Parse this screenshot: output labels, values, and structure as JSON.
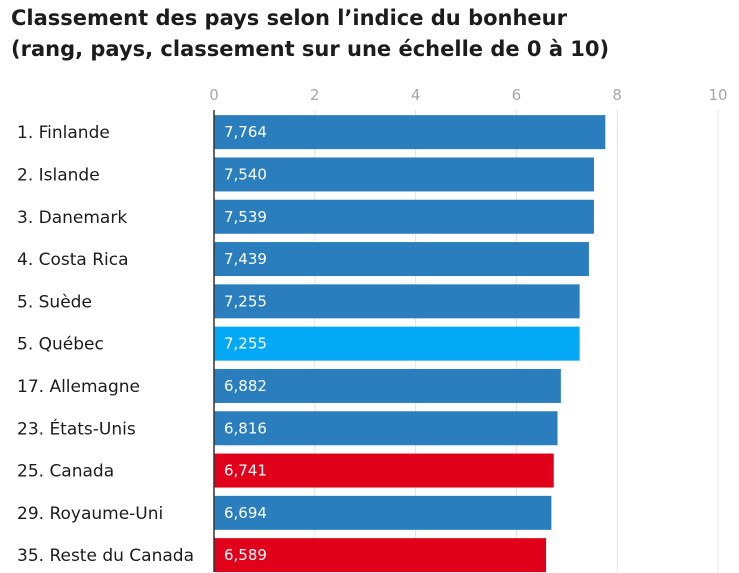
{
  "chart_data": {
    "type": "bar",
    "orientation": "horizontal",
    "title_lines": [
      "Classement des pays selon l’indice du bonheur",
      "(rang, pays, classement sur une échelle de 0 à 10)"
    ],
    "xlim": [
      0,
      10
    ],
    "xticks": [
      0,
      2,
      4,
      6,
      8,
      10
    ],
    "grid": true,
    "categories": [
      "1. Finlande",
      "2. Islande",
      "3. Danemark",
      "4. Costa Rica",
      "5. Suède",
      "5. Québec",
      "17. Allemagne",
      "23. États-Unis",
      "25. Canada",
      "29. Royaume-Uni",
      "35. Reste du Canada"
    ],
    "values": [
      7.764,
      7.54,
      7.539,
      7.439,
      7.255,
      7.255,
      6.882,
      6.816,
      6.741,
      6.694,
      6.589
    ],
    "value_labels": [
      "7,764",
      "7,540",
      "7,539",
      "7,439",
      "7,255",
      "7,255",
      "6,882",
      "6,816",
      "6,741",
      "6,694",
      "6,589"
    ],
    "bar_colors": [
      "#2a7ebd",
      "#2a7ebd",
      "#2a7ebd",
      "#2a7ebd",
      "#2a7ebd",
      "#03a9f4",
      "#2a7ebd",
      "#2a7ebd",
      "#e1001a",
      "#2a7ebd",
      "#e1001a"
    ],
    "colors": {
      "default": "#2a7ebd",
      "highlight": "#03a9f4",
      "canada": "#e1001a"
    }
  }
}
